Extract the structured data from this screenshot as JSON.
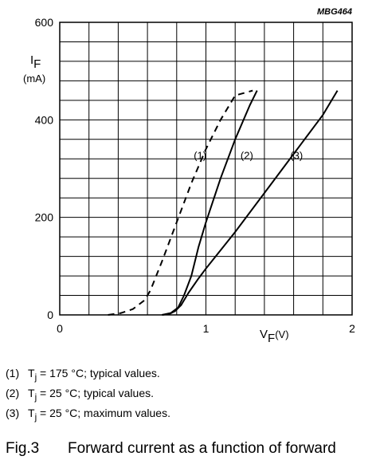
{
  "figure_id": "MBG464",
  "chart_data": {
    "type": "line",
    "title": "",
    "xlabel": {
      "symbol": "V",
      "sub": "F",
      "unit": "(V)"
    },
    "ylabel": {
      "symbol": "I",
      "sub": "F",
      "unit": "(mA)"
    },
    "xlim": [
      0,
      2
    ],
    "ylim": [
      0,
      600
    ],
    "x_ticks": [
      0,
      1,
      2
    ],
    "y_ticks": [
      0,
      200,
      400,
      600
    ],
    "x_grid_step": 0.2,
    "y_grid_step": 40,
    "grid": true,
    "series": [
      {
        "name": "(1)",
        "style": "dashed",
        "label_at": [
          0.96,
          320
        ],
        "points": [
          [
            0.33,
            0
          ],
          [
            0.42,
            4
          ],
          [
            0.5,
            12
          ],
          [
            0.58,
            30
          ],
          [
            0.62,
            50
          ],
          [
            0.7,
            110
          ],
          [
            0.8,
            190
          ],
          [
            0.9,
            270
          ],
          [
            1.0,
            340
          ],
          [
            1.1,
            400
          ],
          [
            1.2,
            450
          ],
          [
            1.32,
            460
          ]
        ]
      },
      {
        "name": "(2)",
        "style": "solid",
        "label_at": [
          1.28,
          320
        ],
        "points": [
          [
            0.7,
            0
          ],
          [
            0.76,
            4
          ],
          [
            0.81,
            15
          ],
          [
            0.85,
            40
          ],
          [
            0.9,
            80
          ],
          [
            0.95,
            140
          ],
          [
            1.0,
            190
          ],
          [
            1.1,
            280
          ],
          [
            1.2,
            360
          ],
          [
            1.3,
            430
          ],
          [
            1.35,
            460
          ]
        ]
      },
      {
        "name": "(3)",
        "style": "solid",
        "label_at": [
          1.62,
          320
        ],
        "points": [
          [
            0.7,
            0
          ],
          [
            0.75,
            2
          ],
          [
            0.79,
            8
          ],
          [
            0.83,
            20
          ],
          [
            0.88,
            45
          ],
          [
            0.95,
            75
          ],
          [
            1.0,
            95
          ],
          [
            1.2,
            170
          ],
          [
            1.4,
            250
          ],
          [
            1.6,
            330
          ],
          [
            1.8,
            410
          ],
          [
            1.9,
            460
          ]
        ]
      }
    ]
  },
  "legend": [
    {
      "num": "(1)",
      "text": "T",
      "sub": "j",
      "rest": " = 175 °C; typical values."
    },
    {
      "num": "(2)",
      "text": "T",
      "sub": "j",
      "rest": " = 25 °C; typical values."
    },
    {
      "num": "(3)",
      "text": "T",
      "sub": "j",
      "rest": " = 25 °C; maximum values."
    }
  ],
  "caption": {
    "fig": "Fig.3",
    "text": "Forward current as a function of forward"
  }
}
